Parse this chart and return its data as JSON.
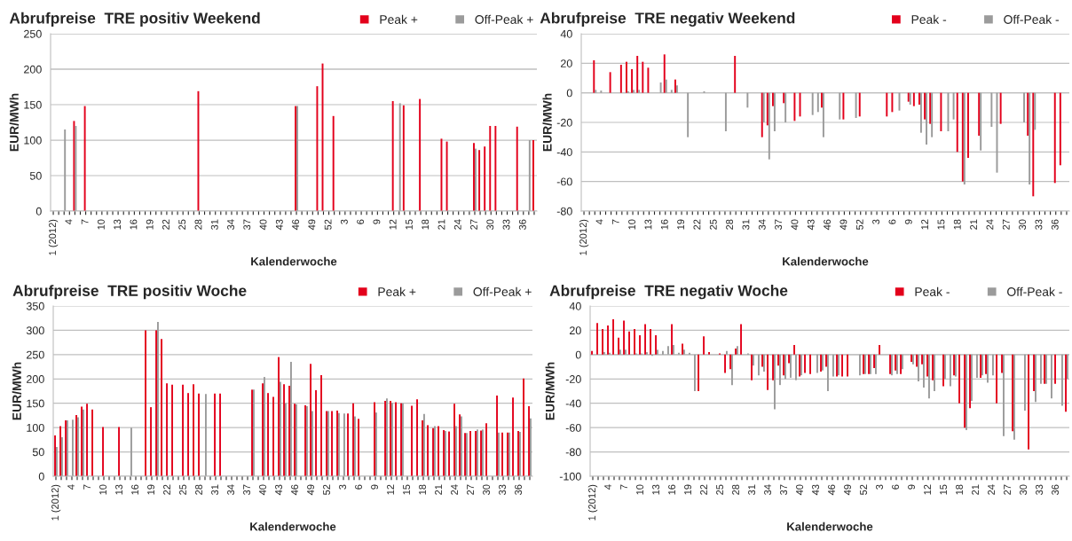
{
  "chart_data": [
    {
      "type": "bar",
      "title": "Abrufpreise  TRE positiv Weekend",
      "xlabel": "Kalenderwoche",
      "ylabel": "EUR/MWh",
      "categories": [
        "1 (2012)",
        null,
        null,
        "4",
        null,
        null,
        "7",
        null,
        null,
        "10",
        null,
        null,
        "13",
        null,
        null,
        "16",
        null,
        null,
        "19",
        null,
        null,
        "22",
        null,
        null,
        "25",
        null,
        null,
        "28",
        null,
        null,
        "31",
        null,
        null,
        "34",
        null,
        null,
        "37",
        null,
        null,
        "40",
        null,
        null,
        "43",
        null,
        null,
        "46",
        null,
        null,
        "49",
        null,
        null,
        "52",
        null,
        null,
        "3",
        null,
        null,
        "6",
        null,
        null,
        "9",
        null,
        null,
        "12",
        null,
        null,
        "15",
        null,
        null,
        "18",
        null,
        null,
        "21",
        null,
        null,
        "24",
        null,
        null,
        "27",
        null,
        null,
        "30",
        null,
        null,
        "33",
        null,
        null,
        "36",
        null,
        null
      ],
      "series": [
        {
          "name": "Peak +",
          "color": "#e3001b",
          "values": [
            null,
            null,
            null,
            null,
            127,
            null,
            148,
            null,
            null,
            null,
            null,
            null,
            null,
            null,
            null,
            null,
            null,
            null,
            null,
            null,
            null,
            null,
            null,
            null,
            null,
            null,
            null,
            169,
            null,
            null,
            null,
            null,
            null,
            null,
            null,
            null,
            null,
            null,
            null,
            null,
            null,
            null,
            null,
            null,
            null,
            148,
            null,
            null,
            null,
            176,
            208,
            null,
            134,
            null,
            null,
            null,
            null,
            null,
            null,
            null,
            null,
            null,
            null,
            155,
            null,
            149,
            null,
            null,
            158,
            null,
            null,
            null,
            102,
            98,
            null,
            null,
            null,
            null,
            96,
            86,
            91,
            120,
            120,
            null,
            null,
            null,
            119,
            null,
            null,
            100
          ]
        },
        {
          "name": "Off-Peak +",
          "color": "#9b9b9b",
          "values": [
            null,
            null,
            115,
            null,
            120,
            null,
            null,
            null,
            null,
            null,
            null,
            null,
            null,
            null,
            null,
            null,
            null,
            null,
            null,
            null,
            null,
            null,
            null,
            null,
            null,
            null,
            null,
            null,
            null,
            null,
            null,
            null,
            null,
            null,
            null,
            null,
            null,
            null,
            null,
            null,
            null,
            null,
            null,
            null,
            null,
            148,
            null,
            null,
            null,
            null,
            null,
            null,
            null,
            null,
            null,
            null,
            null,
            null,
            null,
            null,
            null,
            null,
            null,
            null,
            152,
            null,
            null,
            null,
            null,
            null,
            null,
            null,
            null,
            null,
            null,
            null,
            null,
            null,
            88,
            null,
            null,
            null,
            null,
            null,
            null,
            null,
            null,
            null,
            100,
            null
          ]
        }
      ],
      "ylim": [
        0,
        250
      ],
      "yticks": [
        0,
        50,
        100,
        150,
        200,
        250
      ],
      "grid": "y",
      "legend": "top"
    },
    {
      "type": "bar",
      "title": "Abrufpreise  TRE negativ Weekend",
      "xlabel": "Kalenderwoche",
      "ylabel": "EUR/MWh",
      "categories": [
        "1 (2012)",
        null,
        null,
        "4",
        null,
        null,
        "7",
        null,
        null,
        "10",
        null,
        null,
        "13",
        null,
        null,
        "16",
        null,
        null,
        "19",
        null,
        null,
        "22",
        null,
        null,
        "25",
        null,
        null,
        "28",
        null,
        null,
        "31",
        null,
        null,
        "34",
        null,
        null,
        "37",
        null,
        null,
        "40",
        null,
        null,
        "43",
        null,
        null,
        "46",
        null,
        null,
        "49",
        null,
        null,
        "52",
        null,
        null,
        "3",
        null,
        null,
        "6",
        null,
        null,
        "9",
        null,
        null,
        "12",
        null,
        null,
        "15",
        null,
        null,
        "18",
        null,
        null,
        "21",
        null,
        null,
        "24",
        null,
        null,
        "27",
        null,
        null,
        "30",
        null,
        null,
        "33",
        null,
        null,
        "36",
        null,
        null
      ],
      "series": [
        {
          "name": "Peak -",
          "color": "#e3001b",
          "values": [
            null,
            null,
            22,
            null,
            null,
            14,
            null,
            19,
            21,
            16,
            25,
            21,
            17,
            null,
            null,
            26,
            null,
            9,
            null,
            null,
            null,
            null,
            null,
            null,
            null,
            null,
            null,
            null,
            25,
            null,
            null,
            null,
            null,
            -30,
            -22,
            -9,
            null,
            -7,
            null,
            -19,
            -16,
            null,
            null,
            null,
            -10,
            null,
            null,
            null,
            -18,
            null,
            null,
            -16,
            null,
            null,
            null,
            null,
            -16,
            -13,
            null,
            null,
            -6,
            -9,
            -8,
            -18,
            -21,
            null,
            -26,
            null,
            null,
            -40,
            -60,
            -44,
            null,
            -29,
            null,
            null,
            null,
            -21,
            null,
            null,
            null,
            null,
            -29,
            -70,
            null,
            null,
            null,
            -61,
            -49,
            null
          ]
        },
        {
          "name": "Off-Peak -",
          "color": "#9b9b9b",
          "values": [
            null,
            null,
            2,
            1.5,
            null,
            null,
            null,
            null,
            1,
            2,
            2,
            null,
            null,
            null,
            7,
            9,
            2,
            5,
            null,
            -30,
            null,
            null,
            1,
            null,
            null,
            null,
            -26,
            null,
            null,
            null,
            -10,
            null,
            null,
            -20,
            -45,
            -26,
            null,
            -20,
            null,
            null,
            null,
            null,
            -15,
            -13,
            -30,
            null,
            null,
            -18,
            null,
            null,
            -17,
            null,
            null,
            null,
            null,
            null,
            null,
            null,
            -12,
            null,
            -8,
            null,
            -27,
            -35,
            -30,
            null,
            null,
            -26,
            -18,
            null,
            -62,
            null,
            null,
            -39,
            null,
            -23,
            -54,
            null,
            null,
            null,
            null,
            -20,
            -62,
            -25,
            null,
            null,
            null,
            null,
            null,
            null
          ]
        }
      ],
      "ylim": [
        -80,
        40
      ],
      "yticks": [
        -80,
        -60,
        -40,
        -20,
        0,
        20,
        40
      ],
      "grid": "y",
      "legend": "top"
    },
    {
      "type": "bar",
      "title": "Abrufpreise  TRE positiv Woche",
      "xlabel": "Kalenderwoche",
      "ylabel": "EUR/MWh",
      "categories": [
        "1 (2012)",
        null,
        null,
        "4",
        null,
        null,
        "7",
        null,
        null,
        "10",
        null,
        null,
        "13",
        null,
        null,
        "16",
        null,
        null,
        "19",
        null,
        null,
        "22",
        null,
        null,
        "25",
        null,
        null,
        "28",
        null,
        null,
        "31",
        null,
        null,
        "34",
        null,
        null,
        "37",
        null,
        null,
        "40",
        null,
        null,
        "43",
        null,
        null,
        "46",
        null,
        null,
        "49",
        null,
        null,
        "52",
        null,
        null,
        "3",
        null,
        null,
        "6",
        null,
        null,
        "9",
        null,
        null,
        "12",
        null,
        null,
        "15",
        null,
        null,
        "18",
        null,
        null,
        "21",
        null,
        null,
        "24",
        null,
        null,
        "27",
        null,
        null,
        "30",
        null,
        null,
        "33",
        null,
        null,
        "36",
        null,
        null
      ],
      "series": [
        {
          "name": "Peak +",
          "color": "#e3001b",
          "values": [
            84,
            103,
            115,
            null,
            126,
            143,
            149,
            137,
            null,
            101,
            null,
            null,
            101,
            null,
            null,
            null,
            null,
            300,
            142,
            300,
            282,
            191,
            188,
            null,
            188,
            171,
            189,
            170,
            null,
            null,
            170,
            170,
            null,
            null,
            null,
            null,
            null,
            178,
            null,
            191,
            171,
            163,
            245,
            189,
            186,
            149,
            null,
            146,
            231,
            177,
            208,
            134,
            134,
            135,
            null,
            129,
            150,
            118,
            null,
            null,
            152,
            null,
            155,
            155,
            152,
            150,
            null,
            145,
            158,
            115,
            105,
            99,
            103,
            95,
            92,
            149,
            127,
            89,
            93,
            93,
            94,
            109,
            null,
            166,
            90,
            90,
            162,
            93,
            201,
            144
          ]
        },
        {
          "name": "Off-Peak +",
          "color": "#9b9b9b",
          "values": [
            60,
            80,
            115,
            116,
            121,
            137,
            null,
            null,
            null,
            null,
            null,
            null,
            null,
            null,
            100,
            null,
            null,
            null,
            null,
            317,
            null,
            null,
            null,
            null,
            null,
            null,
            null,
            null,
            169,
            null,
            null,
            null,
            null,
            null,
            null,
            null,
            null,
            178,
            null,
            204,
            null,
            null,
            194,
            150,
            235,
            148,
            null,
            144,
            134,
            null,
            null,
            134,
            null,
            130,
            129,
            null,
            123,
            null,
            null,
            null,
            131,
            null,
            160,
            151,
            null,
            150,
            null,
            null,
            null,
            128,
            null,
            103,
            null,
            93,
            null,
            103,
            123,
            89,
            null,
            96,
            96,
            null,
            null,
            90,
            null,
            90,
            null,
            91,
            null,
            119
          ]
        }
      ],
      "ylim": [
        0,
        350
      ],
      "yticks": [
        0,
        50,
        100,
        150,
        200,
        250,
        300,
        350
      ],
      "grid": "y",
      "legend": "top"
    },
    {
      "type": "bar",
      "title": "Abrufpreise  TRE negativ Woche",
      "xlabel": "Kalenderwoche",
      "ylabel": "EUR/MWh",
      "categories": [
        "1 (2012)",
        null,
        null,
        "4",
        null,
        null,
        "7",
        null,
        null,
        "10",
        null,
        null,
        "13",
        null,
        null,
        "16",
        null,
        null,
        "19",
        null,
        null,
        "22",
        null,
        null,
        "25",
        null,
        null,
        "28",
        null,
        null,
        "31",
        null,
        null,
        "34",
        null,
        null,
        "37",
        null,
        null,
        "40",
        null,
        null,
        "43",
        null,
        null,
        "46",
        null,
        null,
        "49",
        null,
        null,
        "52",
        null,
        null,
        "3",
        null,
        null,
        "6",
        null,
        null,
        "9",
        null,
        null,
        "12",
        null,
        null,
        "15",
        null,
        null,
        "18",
        null,
        null,
        "21",
        null,
        null,
        "24",
        null,
        null,
        "27",
        null,
        null,
        "30",
        null,
        null,
        "33",
        null,
        null,
        "36",
        null,
        null
      ],
      "series": [
        {
          "name": "Peak -",
          "color": "#e3001b",
          "values": [
            3,
            26,
            21,
            24,
            29,
            14,
            28,
            19,
            21,
            16,
            25,
            21,
            16,
            null,
            null,
            25,
            null,
            9,
            null,
            null,
            -30,
            15,
            2,
            null,
            1,
            -15,
            -12,
            5,
            25,
            null,
            -21,
            null,
            -10,
            -29,
            -21,
            -9,
            -17,
            -7,
            8,
            -18,
            -15,
            -16,
            null,
            -14,
            -10,
            null,
            -18,
            -18,
            -18,
            null,
            null,
            -16,
            -16,
            -11,
            8,
            null,
            -16,
            -13,
            -16,
            null,
            -6,
            -10,
            -8,
            -18,
            -21,
            null,
            -26,
            null,
            -17,
            -40,
            -60,
            -44,
            null,
            -19,
            -16,
            null,
            -40,
            -15,
            null,
            -63,
            null,
            null,
            -78,
            -30,
            null,
            -24,
            null,
            -24,
            null,
            -47
          ]
        },
        {
          "name": "Off-Peak -",
          "color": "#9b9b9b",
          "values": [
            null,
            null,
            2,
            1.5,
            null,
            4,
            4,
            null,
            1,
            1,
            2,
            -1,
            4,
            3,
            7,
            8,
            1.5,
            4,
            1.5,
            -30,
            null,
            null,
            null,
            null,
            null,
            3,
            -25,
            7,
            null,
            1,
            -9,
            -17,
            -14,
            null,
            -45,
            -25,
            -20,
            -19,
            -21,
            -17,
            null,
            null,
            -15,
            -13,
            -30,
            -18,
            -17,
            null,
            null,
            null,
            -17,
            -16,
            -16,
            -16,
            null,
            null,
            -17,
            -16,
            -12,
            null,
            -8,
            -22,
            -27,
            -36,
            -30,
            null,
            -20,
            -26,
            -18,
            null,
            -62,
            -38,
            -19,
            -17,
            -23,
            -17,
            null,
            -67,
            null,
            -70,
            null,
            -46,
            null,
            -39,
            -24,
            -24,
            -36,
            null,
            -42,
            -20
          ]
        }
      ],
      "ylim": [
        -100,
        40
      ],
      "yticks": [
        -100,
        -80,
        -60,
        -40,
        -20,
        0,
        20,
        40
      ],
      "grid": "y",
      "legend": "top"
    }
  ]
}
